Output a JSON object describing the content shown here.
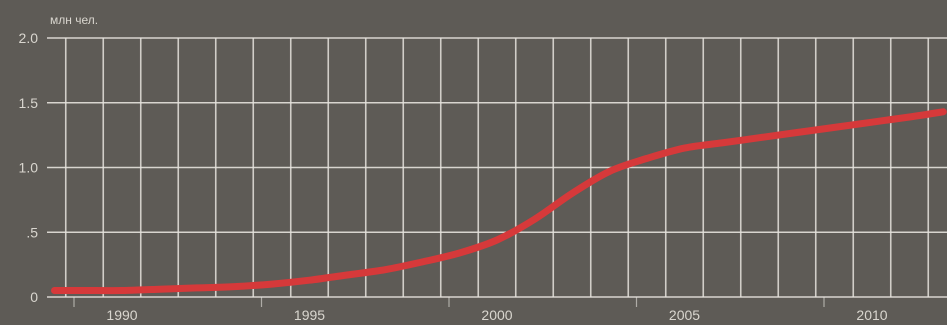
{
  "chart_data": {
    "type": "line",
    "title": "",
    "xlabel": "",
    "ylabel": "млн чел.",
    "xlim": [
      1988,
      2012
    ],
    "ylim": [
      0,
      2.0
    ],
    "x_ticks": [
      1990,
      1995,
      2000,
      2005,
      2010
    ],
    "x_tick_labels": [
      "1990",
      "1995",
      "2000",
      "2005",
      "2010"
    ],
    "y_ticks": [
      0,
      0.5,
      1.0,
      1.5,
      2.0
    ],
    "y_tick_labels": [
      "0",
      ".5",
      "1.0",
      "1.5",
      "2.0"
    ],
    "grid": true,
    "legend": "none",
    "colors": {
      "background": "#5e5b56",
      "grid": "#e6e3dd",
      "line": "#d6393a",
      "text": "#d9d6cf"
    },
    "series": [
      {
        "x": [
          1988.2,
          1989,
          1990,
          1991,
          1992,
          1993,
          1994,
          1995,
          1996,
          1997,
          1998,
          1999,
          2000,
          2001,
          2002,
          2003,
          2004,
          2005,
          2006,
          2007,
          2008,
          2009,
          2010,
          2011,
          2011.9
        ],
        "values": [
          0.05,
          0.05,
          0.05,
          0.06,
          0.07,
          0.08,
          0.1,
          0.13,
          0.17,
          0.21,
          0.27,
          0.34,
          0.44,
          0.6,
          0.8,
          0.97,
          1.07,
          1.15,
          1.19,
          1.23,
          1.27,
          1.31,
          1.35,
          1.39,
          1.43
        ]
      }
    ]
  }
}
